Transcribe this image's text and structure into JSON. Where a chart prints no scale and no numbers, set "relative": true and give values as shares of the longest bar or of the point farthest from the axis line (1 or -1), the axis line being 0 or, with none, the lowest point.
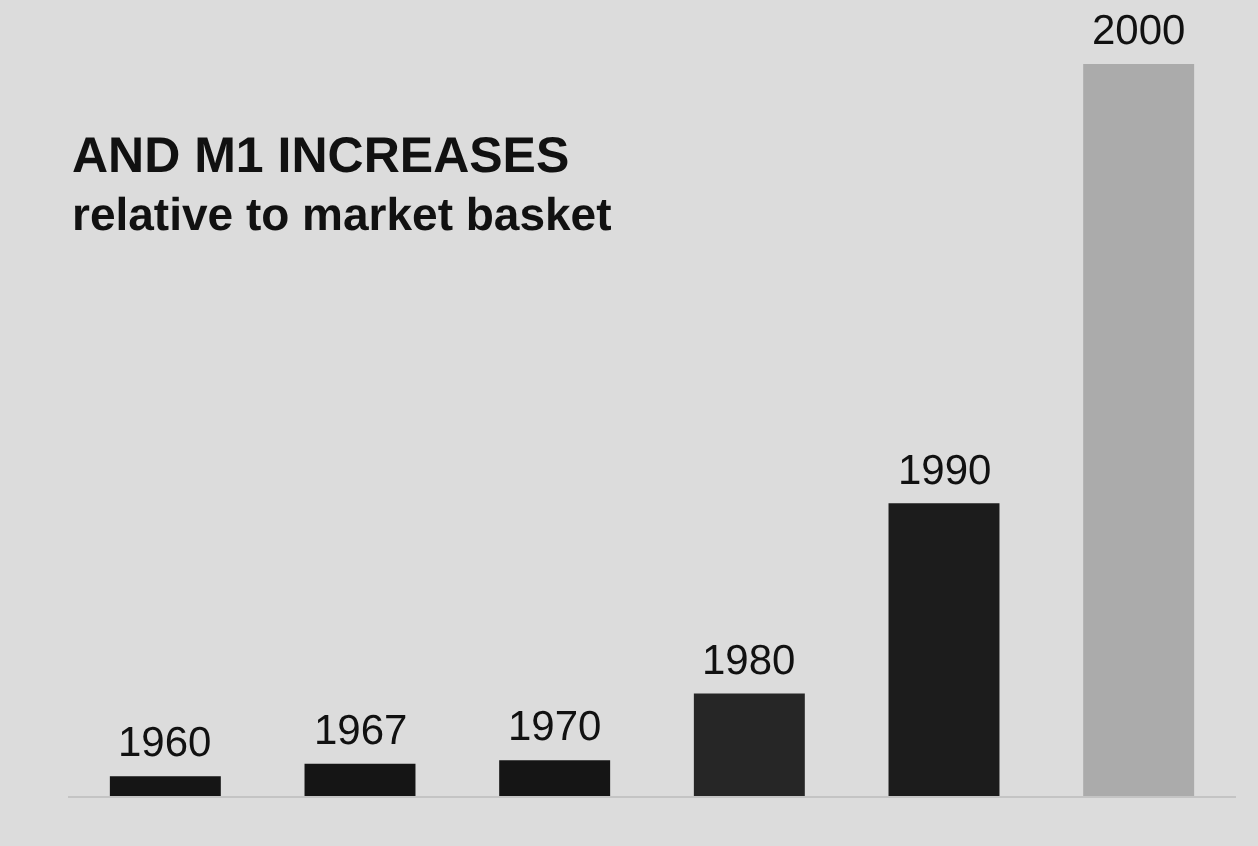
{
  "chart_data": {
    "type": "bar",
    "title": "AND M1 INCREASES",
    "subtitle": "relative to market basket",
    "categories": [
      "1960",
      "1967",
      "1970",
      "1980",
      "1990",
      "2000"
    ],
    "values": [
      0.027,
      0.044,
      0.049,
      0.14,
      0.4,
      1
    ],
    "colors": [
      "#151515",
      "#151515",
      "#151515",
      "#262626",
      "#1c1c1c",
      "#ababab"
    ],
    "relative": true,
    "grid": false,
    "legend": false
  }
}
